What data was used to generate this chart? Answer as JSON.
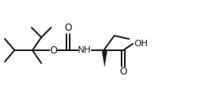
{
  "bg_color": "#ffffff",
  "line_color": "#1a1a1a",
  "lw": 1.4,
  "figsize": [
    2.64,
    1.32
  ],
  "dpi": 100,
  "xlim": [
    0,
    264
  ],
  "ylim": [
    0,
    132
  ]
}
